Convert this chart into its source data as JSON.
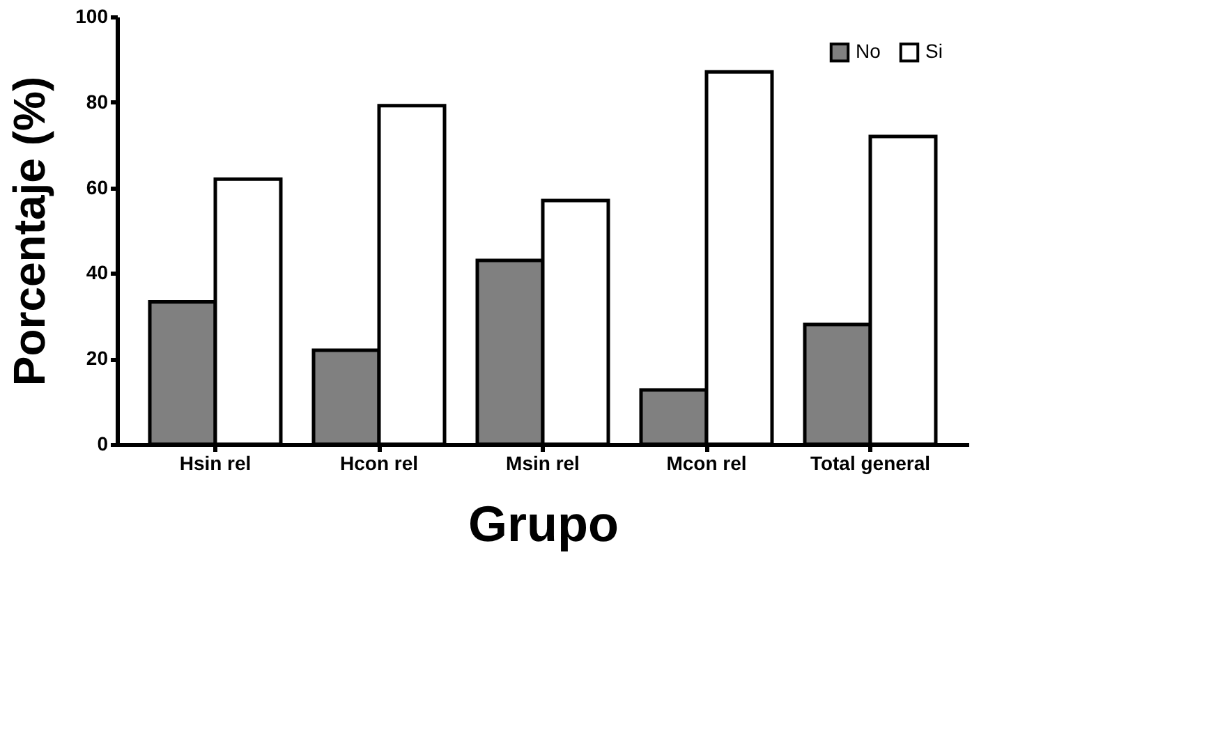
{
  "chart_data": {
    "type": "bar",
    "xlabel": "Grupo",
    "ylabel": "Porcentaje (%)",
    "categories": [
      "Hsin rel",
      "Hcon rel",
      "Msin rel",
      "Mcon rel",
      "Total general"
    ],
    "series": [
      {
        "name": "No",
        "color": "#808080",
        "values": [
          33.3,
          22,
          43,
          12.7,
          28
        ]
      },
      {
        "name": "Si",
        "color": "#ffffff",
        "values": [
          62,
          79.2,
          57,
          87.1,
          72
        ]
      }
    ],
    "ylim": [
      0,
      100
    ],
    "yticks": [
      0,
      20,
      40,
      60,
      80,
      100
    ],
    "grid": false,
    "legend": "top right"
  }
}
